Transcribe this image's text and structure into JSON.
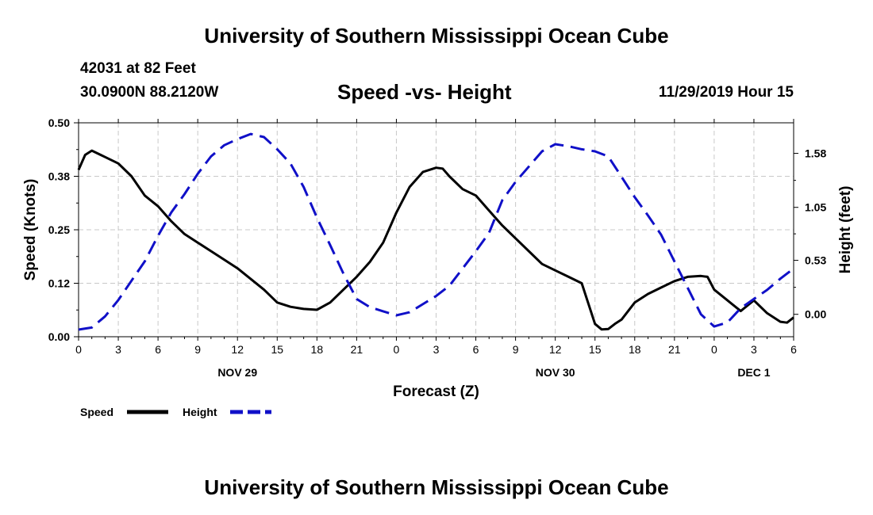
{
  "page": {
    "top_title": "University of Southern Mississippi Ocean Cube",
    "bottom_title": "University of Southern Mississippi Ocean Cube",
    "station": "42031 at 82 Feet",
    "location": "30.0900N 88.2120W",
    "datetime": "11/29/2019 Hour 15"
  },
  "chart_data": {
    "type": "line",
    "title": "Speed -vs- Height",
    "xlabel": "Forecast (Z)",
    "ylabel": "Speed (Knots)",
    "y2label": "Height (feet)",
    "xlim": [
      0,
      54
    ],
    "ylim": [
      0,
      0.5
    ],
    "y2lim": [
      -0.22,
      1.88
    ],
    "grid": true,
    "x_ticks": [
      0,
      3,
      6,
      9,
      12,
      15,
      18,
      21,
      24,
      27,
      30,
      33,
      36,
      39,
      42,
      45,
      48,
      51,
      54
    ],
    "x_tick_labels": [
      "0",
      "3",
      "6",
      "9",
      "12",
      "15",
      "18",
      "21",
      "0",
      "3",
      "6",
      "9",
      "12",
      "15",
      "18",
      "21",
      "0",
      "3",
      "6"
    ],
    "y_ticks": [
      0,
      0.125,
      0.25,
      0.375,
      0.5
    ],
    "y_tick_labels": [
      "0.00",
      "0.12",
      "0.25",
      "0.38",
      "0.50"
    ],
    "y2_ticks": [
      0,
      0.53,
      1.05,
      1.58
    ],
    "y2_tick_labels": [
      "0.00",
      "0.53",
      "1.05",
      "1.58"
    ],
    "date_labels": [
      {
        "x": 12,
        "label": "NOV 29"
      },
      {
        "x": 36,
        "label": "NOV 30"
      },
      {
        "x": 51,
        "label": "DEC 1"
      }
    ],
    "legend": [
      {
        "name": "Speed",
        "color": "#000000",
        "style": "solid"
      },
      {
        "name": "Height",
        "color": "#1010c8",
        "style": "dashed"
      }
    ],
    "legend_position": "bottom-left",
    "series": [
      {
        "name": "Speed",
        "axis": "left",
        "color": "#000000",
        "style": "solid",
        "x": [
          0,
          0.5,
          1,
          2,
          3,
          4,
          5,
          6,
          7,
          8,
          9,
          10,
          11,
          12,
          13,
          14,
          15,
          16,
          17,
          18,
          19,
          20,
          21,
          22,
          23,
          24,
          25,
          26,
          27,
          27.5,
          28,
          29,
          30,
          31,
          32,
          33,
          34,
          35,
          36,
          37,
          38,
          39,
          39.5,
          40,
          40.5,
          41,
          42,
          43,
          44,
          45,
          46,
          47,
          47.5,
          48,
          49,
          50,
          51,
          52,
          53,
          53.5,
          54
        ],
        "values": [
          0.39,
          0.425,
          0.435,
          0.42,
          0.405,
          0.375,
          0.33,
          0.305,
          0.27,
          0.24,
          0.22,
          0.2,
          0.18,
          0.16,
          0.135,
          0.11,
          0.08,
          0.07,
          0.065,
          0.063,
          0.08,
          0.11,
          0.14,
          0.175,
          0.22,
          0.29,
          0.35,
          0.385,
          0.395,
          0.393,
          0.375,
          0.345,
          0.33,
          0.295,
          0.26,
          0.23,
          0.2,
          0.17,
          0.155,
          0.14,
          0.125,
          0.03,
          0.017,
          0.018,
          0.03,
          0.04,
          0.08,
          0.1,
          0.115,
          0.13,
          0.14,
          0.142,
          0.14,
          0.11,
          0.085,
          0.06,
          0.085,
          0.055,
          0.035,
          0.033,
          0.045
        ]
      },
      {
        "name": "Height",
        "axis": "right",
        "color": "#1010c8",
        "style": "dashed",
        "x": [
          0,
          1,
          2,
          3,
          4,
          5,
          6,
          7,
          8,
          9,
          10,
          11,
          12,
          13,
          14,
          15,
          16,
          17,
          18,
          19,
          20,
          21,
          22,
          23,
          24,
          25,
          26,
          27,
          28,
          29,
          30,
          31,
          32,
          33,
          34,
          35,
          36,
          36.5,
          37,
          38,
          39,
          40,
          41,
          42,
          43,
          44,
          45,
          46,
          47,
          48,
          49,
          50,
          51,
          52,
          53,
          54
        ],
        "values": [
          -0.15,
          -0.13,
          -0.02,
          0.14,
          0.33,
          0.52,
          0.77,
          1.0,
          1.18,
          1.38,
          1.55,
          1.66,
          1.72,
          1.77,
          1.74,
          1.62,
          1.48,
          1.25,
          0.95,
          0.68,
          0.4,
          0.15,
          0.07,
          0.03,
          -0.01,
          0.02,
          0.1,
          0.18,
          0.28,
          0.45,
          0.62,
          0.8,
          1.12,
          1.3,
          1.45,
          1.6,
          1.67,
          1.66,
          1.65,
          1.62,
          1.6,
          1.55,
          1.35,
          1.15,
          0.97,
          0.78,
          0.52,
          0.26,
          0.0,
          -0.12,
          -0.08,
          0.06,
          0.15,
          0.24,
          0.35,
          0.45
        ]
      }
    ]
  }
}
